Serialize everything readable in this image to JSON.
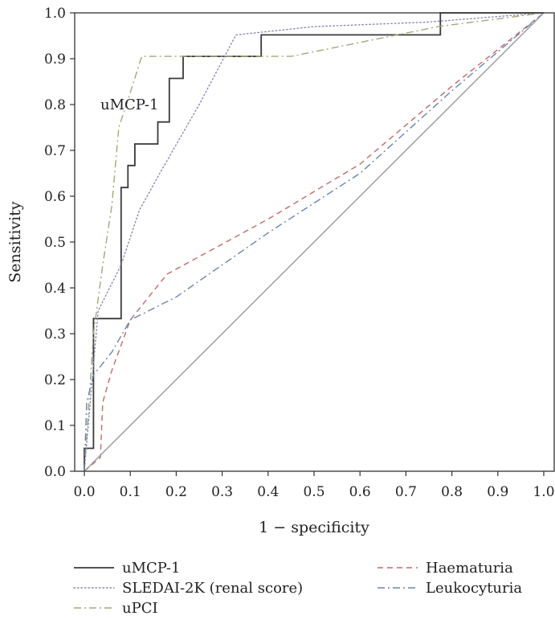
{
  "chart_data": {
    "type": "line",
    "xlabel": "1 − specificity",
    "ylabel": "Sensitivity",
    "xlim": [
      0,
      1
    ],
    "ylim": [
      0,
      1
    ],
    "x_ticks": [
      "0.0",
      "0.1",
      "0.2",
      "0.3",
      "0.4",
      "0.5",
      "0.6",
      "0.7",
      "0.8",
      "0.9",
      "1.0"
    ],
    "y_ticks": [
      "0.0",
      "0.1",
      "0.2",
      "0.3",
      "0.4",
      "0.5",
      "0.6",
      "0.7",
      "0.8",
      "0.9",
      "1.0"
    ],
    "grid": false,
    "legend_position": "bottom",
    "annotation": {
      "text": "uMCP-1",
      "x": 0.075,
      "y": 0.805
    },
    "series": [
      {
        "name": "uMCP-1",
        "color": "#3a3a3a",
        "dash": "solid",
        "points": [
          [
            0,
            0
          ],
          [
            0,
            0.05
          ],
          [
            0.02,
            0.05
          ],
          [
            0.02,
            0.333
          ],
          [
            0.08,
            0.333
          ],
          [
            0.08,
            0.619
          ],
          [
            0.095,
            0.619
          ],
          [
            0.095,
            0.667
          ],
          [
            0.11,
            0.667
          ],
          [
            0.11,
            0.714
          ],
          [
            0.16,
            0.714
          ],
          [
            0.16,
            0.762
          ],
          [
            0.185,
            0.762
          ],
          [
            0.185,
            0.857
          ],
          [
            0.215,
            0.857
          ],
          [
            0.215,
            0.905
          ],
          [
            0.385,
            0.905
          ],
          [
            0.385,
            0.952
          ],
          [
            0.775,
            0.952
          ],
          [
            0.775,
            1.0
          ],
          [
            1.0,
            1.0
          ]
        ]
      },
      {
        "name": "SLEDAI-2K (renal score)",
        "color": "#8a8ab4",
        "dash": "dotted",
        "points": [
          [
            0,
            0
          ],
          [
            0.03,
            0.35
          ],
          [
            0.08,
            0.45
          ],
          [
            0.12,
            0.57
          ],
          [
            0.17,
            0.66
          ],
          [
            0.25,
            0.8
          ],
          [
            0.33,
            0.952
          ],
          [
            0.5,
            0.97
          ],
          [
            0.75,
            0.98
          ],
          [
            1.0,
            1.0
          ]
        ]
      },
      {
        "name": "uPCI",
        "color": "#a0aa78",
        "dash": "dashdot",
        "points": [
          [
            0,
            0
          ],
          [
            0.02,
            0.3
          ],
          [
            0.04,
            0.45
          ],
          [
            0.06,
            0.58
          ],
          [
            0.075,
            0.75
          ],
          [
            0.095,
            0.81
          ],
          [
            0.125,
            0.905
          ],
          [
            0.45,
            0.905
          ],
          [
            0.77,
            0.97
          ],
          [
            1.0,
            1.0
          ]
        ]
      },
      {
        "name": "Haematuria",
        "color": "#c46a6a",
        "dash": "dashed",
        "points": [
          [
            0,
            0
          ],
          [
            0.035,
            0.03
          ],
          [
            0.04,
            0.15
          ],
          [
            0.06,
            0.22
          ],
          [
            0.1,
            0.33
          ],
          [
            0.18,
            0.43
          ],
          [
            0.4,
            0.55
          ],
          [
            0.6,
            0.67
          ],
          [
            0.8,
            0.84
          ],
          [
            1.0,
            1.0
          ]
        ]
      },
      {
        "name": "Leukocyturia",
        "color": "#6a86b0",
        "dash": "dashdot",
        "points": [
          [
            0,
            0
          ],
          [
            0.005,
            0.15
          ],
          [
            0.02,
            0.21
          ],
          [
            0.06,
            0.26
          ],
          [
            0.1,
            0.33
          ],
          [
            0.2,
            0.38
          ],
          [
            0.4,
            0.52
          ],
          [
            0.6,
            0.65
          ],
          [
            0.8,
            0.83
          ],
          [
            1.0,
            1.0
          ]
        ]
      },
      {
        "name": "",
        "color": "#9a9a9a",
        "dash": "solid",
        "points": [
          [
            0,
            0
          ],
          [
            1.0,
            1.0
          ]
        ]
      }
    ]
  }
}
